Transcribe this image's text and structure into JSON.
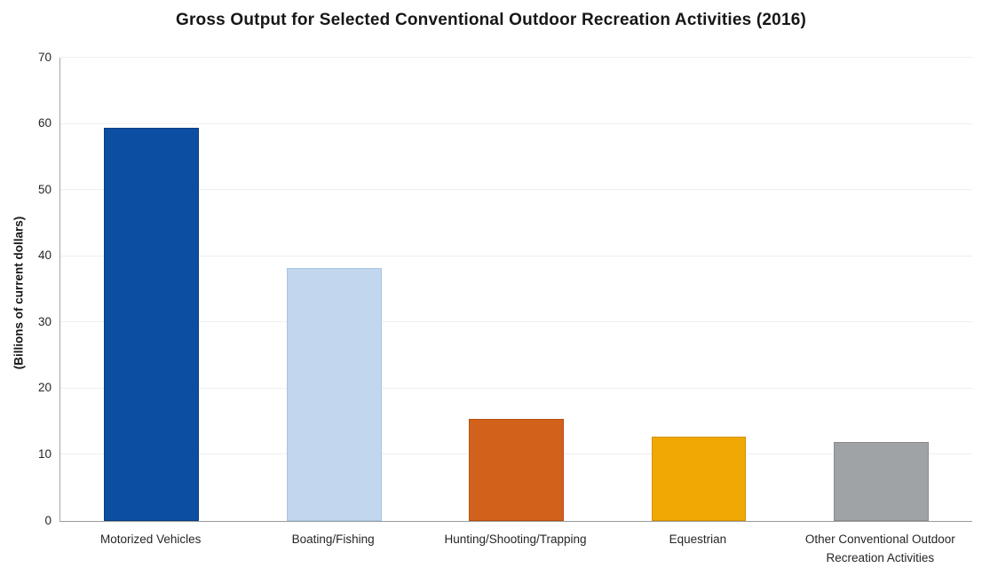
{
  "chart_data": {
    "type": "bar",
    "title": "Gross Output for Selected Conventional Outdoor Recreation Activities (2016)",
    "xlabel": "",
    "ylabel": "(Billions of current dollars)",
    "ylim": [
      0,
      70
    ],
    "ytick_interval": 10,
    "yticks": [
      0,
      10,
      20,
      30,
      40,
      50,
      60,
      70
    ],
    "grid": "horizontal-only",
    "legend": "none",
    "categories": [
      "Motorized Vehicles",
      "Boating/Fishing",
      "Hunting/Shooting/Trapping",
      "Equestrian",
      "Other Conventional Outdoor Recreation Activities"
    ],
    "values": [
      59.4,
      38.2,
      15.4,
      12.7,
      11.9
    ],
    "bar_colors": [
      "#0b4ea2",
      "#c2d6ee",
      "#d2611c",
      "#f0a802",
      "#a0a3a5"
    ],
    "bar_border_colors": [
      "#083d80",
      "#a9c5e5",
      "#b5500f",
      "#d29200",
      "#898c8e"
    ],
    "gridline_color": "#efefef",
    "axis_line_color": "#a6a6a6",
    "text_color": "#262626"
  }
}
